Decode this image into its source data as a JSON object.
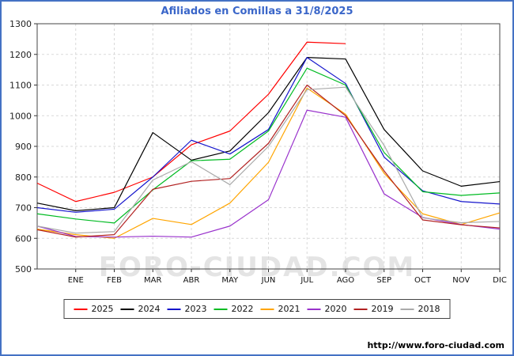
{
  "page": {
    "title": "Afiliados en Comillas a 31/8/2025",
    "watermark": "FORO-CIUDAD.COM",
    "footer_url": "http://www.foro-ciudad.com",
    "border_color": "#4472c4",
    "title_color": "#3a66c9"
  },
  "chart_data": {
    "type": "line",
    "title": "Afiliados en Comillas a 31/8/2025",
    "x_labels": [
      "ENE",
      "FEB",
      "MAR",
      "ABR",
      "MAY",
      "JUN",
      "JUL",
      "AGO",
      "SEP",
      "OCT",
      "NOV",
      "DIC"
    ],
    "note": "first value of each series is drawn at the left plot edge before the ENE tick; 2025 series ends at AGO",
    "ylim": [
      500,
      1300
    ],
    "ytick_step": 100,
    "grid": true,
    "legend_position": "bottom",
    "series": [
      {
        "name": "2025",
        "color": "#ff0000",
        "values": [
          780,
          720,
          750,
          800,
          905,
          950,
          1070,
          1240,
          1235
        ]
      },
      {
        "name": "2024",
        "color": "#000000",
        "values": [
          715,
          690,
          700,
          945,
          855,
          885,
          1010,
          1190,
          1185,
          955,
          820,
          770,
          785
        ]
      },
      {
        "name": "2023",
        "color": "#1515cc",
        "values": [
          700,
          685,
          695,
          800,
          920,
          875,
          955,
          1190,
          1105,
          865,
          755,
          720,
          712
        ]
      },
      {
        "name": "2022",
        "color": "#00bb22",
        "values": [
          680,
          663,
          650,
          758,
          853,
          858,
          950,
          1155,
          1100,
          880,
          752,
          740,
          748
        ]
      },
      {
        "name": "2021",
        "color": "#ffa500",
        "values": [
          630,
          612,
          600,
          665,
          645,
          715,
          848,
          1090,
          1005,
          812,
          680,
          645,
          683
        ]
      },
      {
        "name": "2020",
        "color": "#9932cc",
        "values": [
          640,
          606,
          604,
          607,
          604,
          640,
          726,
          1018,
          995,
          745,
          668,
          645,
          630
        ]
      },
      {
        "name": "2019",
        "color": "#b22222",
        "values": [
          628,
          604,
          612,
          760,
          786,
          795,
          910,
          1100,
          1000,
          820,
          660,
          644,
          634
        ]
      },
      {
        "name": "2018",
        "color": "#aaaaaa",
        "values": [
          640,
          617,
          622,
          790,
          850,
          775,
          900,
          1085,
          1093,
          903,
          667,
          651,
          655
        ]
      }
    ]
  }
}
